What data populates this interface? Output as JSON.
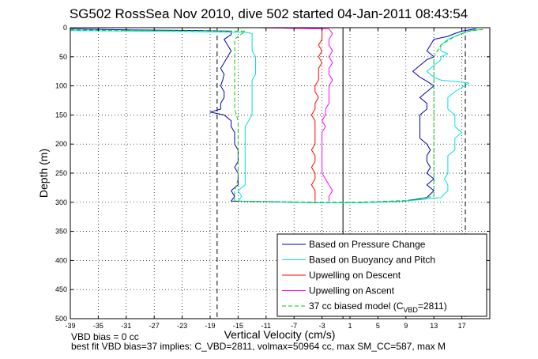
{
  "chart_data": {
    "type": "line",
    "title": "SG502 RossSea Nov 2010, dive 502 started 04-Jan-2011 08:43:54",
    "xlabel": "Vertical Velocity (cm/s)",
    "ylabel": "Depth (m)",
    "xlim": [
      -39,
      21
    ],
    "ylim": [
      500,
      0
    ],
    "y_reversed": true,
    "xticks": [
      "-39",
      "-35",
      "-31",
      "-27",
      "-23",
      "-19",
      "-15",
      "-11",
      "-7",
      "-3",
      "1",
      "5",
      "9",
      "13",
      "17"
    ],
    "yticks": [
      "0",
      "50",
      "100",
      "150",
      "200",
      "250",
      "300",
      "350",
      "400",
      "450",
      "500"
    ],
    "grid": true,
    "legend_position": "bottom-right",
    "legend": [
      {
        "label": "Based on Pressure Change",
        "color": "#0000b4",
        "dashed": false
      },
      {
        "label": "Based on Buoyancy and Pitch",
        "color": "#00e0e0",
        "dashed": false
      },
      {
        "label": "Upwelling on Descent",
        "color": "#ff0000",
        "dashed": false
      },
      {
        "label": "Upwelling on Ascent",
        "color": "#ff00ff",
        "dashed": false
      },
      {
        "label": "37 cc biased model (C",
        "sub": "VBD",
        "suffix": "=2811)",
        "color": "#00cc00",
        "dashed": true
      }
    ],
    "series": [
      {
        "name": "Based on Pressure Change",
        "color": "#0000b4",
        "points": [
          [
            -39,
            2
          ],
          [
            -30,
            4
          ],
          [
            -20,
            5
          ],
          [
            -16,
            6
          ],
          [
            -16,
            12
          ],
          [
            -17,
            20
          ],
          [
            -16.5,
            30
          ],
          [
            -16,
            40
          ],
          [
            -16.5,
            50
          ],
          [
            -17,
            60
          ],
          [
            -17.5,
            70
          ],
          [
            -17,
            80
          ],
          [
            -17.2,
            90
          ],
          [
            -17.5,
            100
          ],
          [
            -17,
            110
          ],
          [
            -17,
            120
          ],
          [
            -17.5,
            130
          ],
          [
            -17.5,
            140
          ],
          [
            -19,
            145
          ],
          [
            -17,
            150
          ],
          [
            -16,
            160
          ],
          [
            -16,
            170
          ],
          [
            -15.5,
            180
          ],
          [
            -15.5,
            190
          ],
          [
            -15.5,
            200
          ],
          [
            -15,
            210
          ],
          [
            -15,
            220
          ],
          [
            -15,
            230
          ],
          [
            -15.5,
            240
          ],
          [
            -15,
            250
          ],
          [
            -15,
            260
          ],
          [
            -15,
            270
          ],
          [
            -16,
            280
          ],
          [
            -15.5,
            290
          ],
          [
            -16,
            298
          ],
          [
            -3,
            301
          ],
          [
            2,
            301
          ],
          [
            9,
            298
          ],
          [
            12,
            292
          ],
          [
            13,
            280
          ],
          [
            12,
            270
          ],
          [
            13,
            260
          ],
          [
            12,
            250
          ],
          [
            12.5,
            240
          ],
          [
            12,
            230
          ],
          [
            12,
            220
          ],
          [
            12.5,
            210
          ],
          [
            12,
            200
          ],
          [
            11,
            190
          ],
          [
            11,
            180
          ],
          [
            11,
            170
          ],
          [
            11,
            160
          ],
          [
            11,
            150
          ],
          [
            12,
            140
          ],
          [
            12,
            130
          ],
          [
            11,
            120
          ],
          [
            12,
            110
          ],
          [
            13,
            100
          ],
          [
            12,
            92
          ],
          [
            11,
            85
          ],
          [
            10,
            75
          ],
          [
            11,
            65
          ],
          [
            12,
            55
          ],
          [
            13,
            50
          ],
          [
            12.5,
            45
          ],
          [
            12,
            40
          ],
          [
            12.5,
            30
          ],
          [
            13,
            20
          ],
          [
            15,
            15
          ],
          [
            16,
            10
          ],
          [
            17,
            6
          ],
          [
            18,
            4
          ],
          [
            19,
            2
          ]
        ]
      },
      {
        "name": "Based on Buoyancy and Pitch",
        "color": "#00e0e0",
        "points": [
          [
            -39,
            5
          ],
          [
            -30,
            6
          ],
          [
            -20,
            7
          ],
          [
            -14,
            8
          ],
          [
            -13,
            10
          ],
          [
            -13,
            20
          ],
          [
            -13,
            30
          ],
          [
            -13,
            40
          ],
          [
            -12.5,
            50
          ],
          [
            -12.5,
            60
          ],
          [
            -12.5,
            70
          ],
          [
            -12.5,
            80
          ],
          [
            -13,
            90
          ],
          [
            -13,
            100
          ],
          [
            -13,
            110
          ],
          [
            -13,
            120
          ],
          [
            -13,
            130
          ],
          [
            -13,
            140
          ],
          [
            -13,
            150
          ],
          [
            -13.5,
            160
          ],
          [
            -14,
            170
          ],
          [
            -14,
            180
          ],
          [
            -14,
            190
          ],
          [
            -14,
            200
          ],
          [
            -14,
            210
          ],
          [
            -14,
            220
          ],
          [
            -14,
            230
          ],
          [
            -14,
            240
          ],
          [
            -14,
            250
          ],
          [
            -14,
            260
          ],
          [
            -14,
            270
          ],
          [
            -15,
            280
          ],
          [
            -14.5,
            290
          ],
          [
            -15,
            298
          ],
          [
            -3,
            301
          ],
          [
            2,
            301
          ],
          [
            9,
            298
          ],
          [
            14,
            292
          ],
          [
            15,
            280
          ],
          [
            15,
            270
          ],
          [
            14.5,
            260
          ],
          [
            15,
            250
          ],
          [
            15,
            240
          ],
          [
            15,
            230
          ],
          [
            15,
            220
          ],
          [
            16,
            210
          ],
          [
            16,
            200
          ],
          [
            16,
            190
          ],
          [
            17,
            180
          ],
          [
            16,
            170
          ],
          [
            16,
            160
          ],
          [
            16,
            150
          ],
          [
            15,
            140
          ],
          [
            15,
            130
          ],
          [
            15,
            120
          ],
          [
            16,
            110
          ],
          [
            18,
            95
          ],
          [
            14,
            90
          ],
          [
            13,
            85
          ],
          [
            12,
            75
          ],
          [
            13,
            65
          ],
          [
            14,
            55
          ],
          [
            14,
            50
          ],
          [
            15,
            45
          ],
          [
            14,
            40
          ],
          [
            14,
            30
          ],
          [
            15,
            20
          ],
          [
            16,
            15
          ],
          [
            17,
            10
          ],
          [
            18,
            6
          ],
          [
            19,
            4
          ],
          [
            20,
            3
          ]
        ]
      },
      {
        "name": "Upwelling on Descent",
        "color": "#ff0000",
        "points": [
          [
            -12,
            0
          ],
          [
            -3,
            2
          ],
          [
            -3,
            10
          ],
          [
            -3,
            20
          ],
          [
            -3.5,
            30
          ],
          [
            -3,
            40
          ],
          [
            -3.5,
            50
          ],
          [
            -3,
            60
          ],
          [
            -3.5,
            70
          ],
          [
            -3.5,
            80
          ],
          [
            -3.5,
            90
          ],
          [
            -4,
            100
          ],
          [
            -4,
            110
          ],
          [
            -3.5,
            120
          ],
          [
            -4,
            130
          ],
          [
            -4,
            140
          ],
          [
            -4.5,
            150
          ],
          [
            -4,
            160
          ],
          [
            -4,
            170
          ],
          [
            -4,
            180
          ],
          [
            -4,
            190
          ],
          [
            -4,
            200
          ],
          [
            -4.5,
            210
          ],
          [
            -4,
            220
          ],
          [
            -4,
            230
          ],
          [
            -4.5,
            240
          ],
          [
            -4,
            250
          ],
          [
            -4,
            260
          ],
          [
            -4.5,
            270
          ],
          [
            -4,
            280
          ],
          [
            -4,
            290
          ],
          [
            -4,
            298
          ]
        ]
      },
      {
        "name": "Upwelling on Ascent",
        "color": "#ff00ff",
        "points": [
          [
            -2,
            298
          ],
          [
            -2,
            290
          ],
          [
            -1.5,
            280
          ],
          [
            -2,
            270
          ],
          [
            -2.5,
            260
          ],
          [
            -3,
            250
          ],
          [
            -3,
            240
          ],
          [
            -3,
            230
          ],
          [
            -3,
            220
          ],
          [
            -3,
            210
          ],
          [
            -3,
            200
          ],
          [
            -3,
            190
          ],
          [
            -3,
            180
          ],
          [
            -2.5,
            170
          ],
          [
            -3,
            160
          ],
          [
            -2.5,
            150
          ],
          [
            -2.5,
            140
          ],
          [
            -2,
            130
          ],
          [
            -2,
            120
          ],
          [
            -2,
            110
          ],
          [
            -2,
            100
          ],
          [
            -1.5,
            90
          ],
          [
            -2,
            80
          ],
          [
            -2,
            70
          ],
          [
            -1.5,
            60
          ],
          [
            -2,
            50
          ],
          [
            -1.5,
            40
          ],
          [
            -2,
            30
          ],
          [
            -2,
            20
          ],
          [
            -1.5,
            10
          ],
          [
            -2,
            2
          ],
          [
            -12,
            0
          ]
        ]
      },
      {
        "name": "37 cc biased model (CVBD=2811)",
        "color": "#00cc00",
        "dashed": true,
        "points": [
          [
            -39,
            4
          ],
          [
            -25,
            5
          ],
          [
            -14,
            6
          ],
          [
            -15.5,
            20
          ],
          [
            -15.5,
            50
          ],
          [
            -15.5,
            80
          ],
          [
            -15.5,
            100
          ],
          [
            -15.5,
            140
          ],
          [
            -15,
            160
          ],
          [
            -15,
            180
          ],
          [
            -15,
            200
          ],
          [
            -15,
            220
          ],
          [
            -15,
            240
          ],
          [
            -15,
            260
          ],
          [
            -15.5,
            280
          ],
          [
            -15.5,
            298
          ],
          [
            -3,
            300
          ],
          [
            2,
            300
          ],
          [
            9,
            297
          ],
          [
            13,
            290
          ],
          [
            13,
            270
          ],
          [
            13,
            250
          ],
          [
            13,
            230
          ],
          [
            13,
            210
          ],
          [
            13,
            190
          ],
          [
            13,
            170
          ],
          [
            13,
            150
          ],
          [
            13,
            130
          ],
          [
            13,
            110
          ],
          [
            13,
            90
          ],
          [
            13,
            70
          ],
          [
            13,
            50
          ],
          [
            14,
            30
          ],
          [
            16,
            15
          ],
          [
            18,
            6
          ],
          [
            20,
            3
          ]
        ]
      }
    ],
    "reference_lines": [
      {
        "x": -18,
        "style": "dashed",
        "color": "#000000"
      },
      {
        "x": 17.5,
        "style": "dashed",
        "color": "#000000"
      },
      {
        "x": 0,
        "style": "solid",
        "color": "#000000"
      }
    ]
  },
  "footer": {
    "line1": "VBD bias = 0 cc",
    "line2": "best fit VBD bias=37 implies: C_VBD=2811, volmax=50964 cc, max SM_CC=587, max M"
  }
}
